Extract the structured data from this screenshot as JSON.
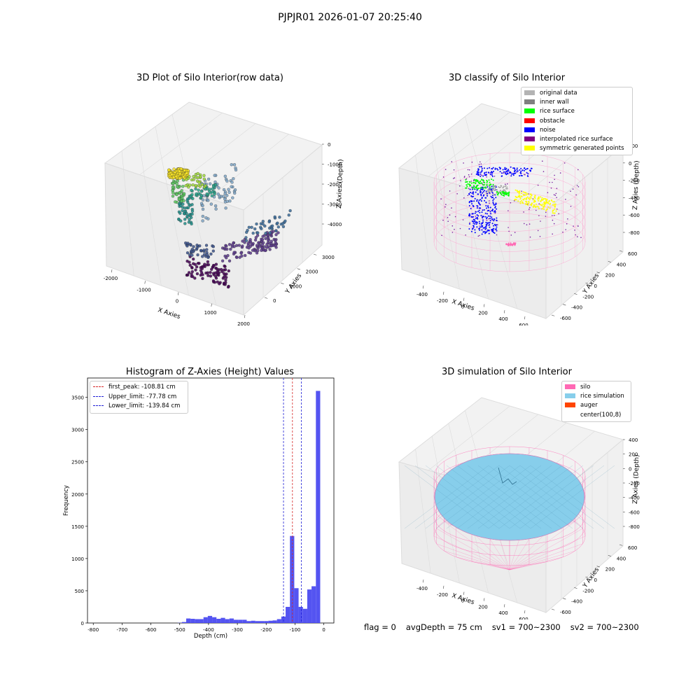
{
  "suptitle": "PJPJR01 2026-01-07 20:25:40",
  "footer": {
    "flag": "flag = 0",
    "avg_depth": "avgDepth = 75 cm",
    "sv1": "sv1 = 700~2300",
    "sv2": "sv2 = 700~2300"
  },
  "colors": {
    "histogram": "#4b4bf0",
    "peak_line": "#d62728",
    "limit_line": "#1f1fd6",
    "silo": "#ff69b4",
    "rice": "#87ceeb",
    "auger": "#ff4500"
  },
  "chart_data": [
    {
      "type": "scatter",
      "subtype": "3d",
      "title": "3D Plot of Silo Interior(row data)",
      "xlabel": "X Axies",
      "ylabel": "Y Axies",
      "zlabel": "Z Axies (Depth)",
      "x_ticks": [
        "-2000",
        "-1000",
        "0",
        "1000",
        "2000"
      ],
      "y_ticks": [
        "0",
        "1000",
        "2000",
        "3000"
      ],
      "z_ticks": [
        "0",
        "-1000",
        "-2000",
        "-3000",
        "-4000"
      ],
      "colormap": "viridis",
      "grid": true
    },
    {
      "type": "scatter",
      "subtype": "3d",
      "title": "3D classify of Silo Interior",
      "xlabel": "X Axies",
      "ylabel": "Y Axies",
      "zlabel": "Z Axies (Depth)",
      "x_ticks": [
        "-400",
        "-200",
        "0",
        "200",
        "400",
        "600"
      ],
      "y_ticks": [
        "-600",
        "-400",
        "-200",
        "0",
        "200",
        "400",
        "600"
      ],
      "z_ticks": [
        "200",
        "0",
        "-200",
        "-400",
        "-600",
        "-800"
      ],
      "legend_position": "top-right",
      "legend": [
        {
          "label": "original data",
          "color": "#b3b3b3"
        },
        {
          "label": "inner wall",
          "color": "#808080"
        },
        {
          "label": "rice surface",
          "color": "#00ff00"
        },
        {
          "label": "obstacle",
          "color": "#ff0000"
        },
        {
          "label": "noise",
          "color": "#0000ff"
        },
        {
          "label": "interpolated rice surface",
          "color": "#800080"
        },
        {
          "label": "symmetric generated points",
          "color": "#ffff00"
        }
      ],
      "grid": true
    },
    {
      "type": "bar",
      "subtype": "histogram",
      "title": "Histogram of Z-Axies (Height) Values",
      "xlabel": "Depth (cm)",
      "ylabel": "Frequency",
      "xlim": [
        -820,
        35
      ],
      "ylim": [
        0,
        3800
      ],
      "x_ticks": [
        "-800",
        "-700",
        "-600",
        "-500",
        "-400",
        "-300",
        "-200",
        "-100",
        "0"
      ],
      "y_ticks": [
        "0",
        "500",
        "1000",
        "1500",
        "2000",
        "2500",
        "3000",
        "3500"
      ],
      "bins": [
        {
          "x": -500,
          "v": 3
        },
        {
          "x": -485,
          "v": 15
        },
        {
          "x": -470,
          "v": 70
        },
        {
          "x": -455,
          "v": 65
        },
        {
          "x": -440,
          "v": 60
        },
        {
          "x": -425,
          "v": 60
        },
        {
          "x": -410,
          "v": 90
        },
        {
          "x": -395,
          "v": 110
        },
        {
          "x": -380,
          "v": 90
        },
        {
          "x": -365,
          "v": 65
        },
        {
          "x": -350,
          "v": 80
        },
        {
          "x": -335,
          "v": 60
        },
        {
          "x": -320,
          "v": 70
        },
        {
          "x": -305,
          "v": 50
        },
        {
          "x": -290,
          "v": 50
        },
        {
          "x": -275,
          "v": 50
        },
        {
          "x": -260,
          "v": 30
        },
        {
          "x": -245,
          "v": 35
        },
        {
          "x": -230,
          "v": 30
        },
        {
          "x": -215,
          "v": 30
        },
        {
          "x": -200,
          "v": 30
        },
        {
          "x": -185,
          "v": 35
        },
        {
          "x": -170,
          "v": 40
        },
        {
          "x": -155,
          "v": 60
        },
        {
          "x": -140,
          "v": 100
        },
        {
          "x": -125,
          "v": 250
        },
        {
          "x": -110,
          "v": 1350
        },
        {
          "x": -95,
          "v": 540
        },
        {
          "x": -80,
          "v": 250
        },
        {
          "x": -65,
          "v": 220
        },
        {
          "x": -50,
          "v": 520
        },
        {
          "x": -35,
          "v": 570
        },
        {
          "x": -20,
          "v": 3600
        }
      ],
      "bin_width": 15,
      "vlines": [
        {
          "label": "first_peak: -108.81 cm",
          "x": -108.81,
          "color": "#d62728"
        },
        {
          "label": "Upper_limit: -77.78 cm",
          "x": -77.78,
          "color": "#1f1fd6"
        },
        {
          "label": "Lower_limit: -139.84 cm",
          "x": -139.84,
          "color": "#1f1fd6"
        }
      ],
      "legend_position": "top-left"
    },
    {
      "type": "scatter",
      "subtype": "3d-surface",
      "title": "3D simulation of Silo Interior",
      "xlabel": "X Axies",
      "ylabel": "Y Axies",
      "zlabel": "Z Axies (Depth)",
      "x_ticks": [
        "-400",
        "-200",
        "0",
        "200",
        "400",
        "600"
      ],
      "y_ticks": [
        "-600",
        "-400",
        "-200",
        "0",
        "200",
        "400",
        "600"
      ],
      "z_ticks": [
        "400",
        "200",
        "0",
        "-200",
        "-400",
        "-600",
        "-800"
      ],
      "legend_position": "top-right",
      "legend": [
        {
          "label": "silo",
          "color": "#ff69b4"
        },
        {
          "label": "rice simulation",
          "color": "#87ceeb"
        },
        {
          "label": "auger",
          "color": "#ff4500"
        },
        {
          "label": "center(100,8)",
          "color": ""
        }
      ],
      "grid": true
    }
  ]
}
